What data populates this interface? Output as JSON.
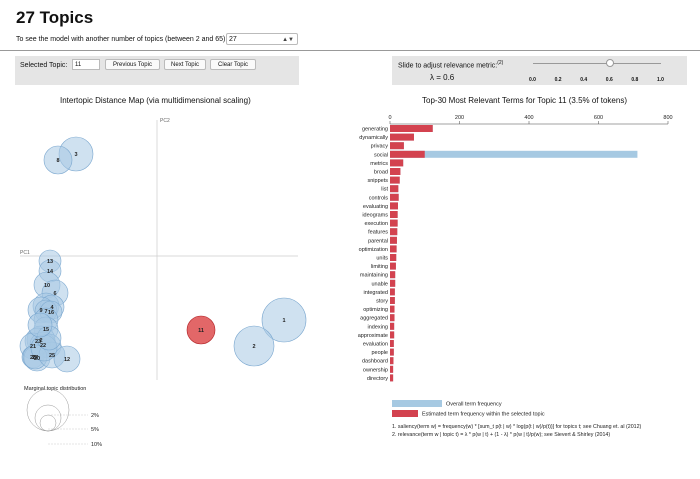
{
  "page": {
    "title": "27 Topics",
    "instruction": "To see the model with another number of topics (between 2 and 65):",
    "topics_value": "27"
  },
  "controls": {
    "selected_topic_label": "Selected Topic:",
    "selected_topic_value": "11",
    "prev_label": "Previous Topic",
    "next_label": "Next Topic",
    "clear_label": "Clear Topic",
    "slider_label": "Slide to adjust relevance metric:",
    "slider_footnote": "(2)",
    "lambda_text": "λ = 0.6",
    "lambda_value": 0.6,
    "slider_ticks": [
      "0.0",
      "0.2",
      "0.4",
      "0.6",
      "0.8",
      "1.0"
    ]
  },
  "map": {
    "title": "Intertopic Distance Map (via multidimensional scaling)",
    "pc1_label": "PC1",
    "pc2_label": "PC2",
    "selected_topic": "11",
    "marginal_title": "Marginal topic distribution",
    "marginal_labels": [
      "2%",
      "5%",
      "10%"
    ],
    "colors": {
      "topic": "#a8c8e3",
      "topic_stroke": "#7aa7cf",
      "selected": "#d62728"
    }
  },
  "chart_data": {
    "type": "bar",
    "title": "Top-30 Most Relevant Terms for Topic 11 (3.5% of tokens)",
    "xlim": [
      0,
      800
    ],
    "xticks": [
      0,
      200,
      400,
      600,
      800
    ],
    "categories": [
      "generating",
      "dynamically",
      "privacy",
      "social",
      "metrics",
      "broad",
      "snippets",
      "list",
      "controls",
      "evaluating",
      "ideograms",
      "execution",
      "features",
      "parental",
      "optimization",
      "units",
      "limiting",
      "maintaining",
      "unable",
      "integrated",
      "story",
      "optimizing",
      "aggregated",
      "indexing",
      "approximate",
      "evaluation",
      "people",
      "dashboard",
      "ownership",
      "directory"
    ],
    "series": [
      {
        "name": "Overall term frequency",
        "color": "#a6c9e2",
        "values": [
          123,
          69,
          40,
          712,
          38,
          30,
          28,
          24,
          25,
          23,
          22,
          22,
          21,
          20,
          19,
          18,
          17,
          15,
          15,
          14,
          14,
          13,
          13,
          12,
          12,
          11,
          11,
          10,
          9,
          9
        ]
      },
      {
        "name": "Estimated term frequency within the selected topic",
        "color": "#d3424f",
        "values": [
          123,
          69,
          40,
          100,
          38,
          30,
          28,
          24,
          25,
          23,
          22,
          22,
          21,
          20,
          19,
          18,
          17,
          15,
          15,
          14,
          14,
          13,
          13,
          12,
          12,
          11,
          11,
          10,
          9,
          9
        ]
      }
    ]
  },
  "legend": {
    "overall": "Overall term frequency",
    "estimated": "Estimated term frequency within the selected topic"
  },
  "notes": {
    "saliency": "1. saliency(term w) = frequency(w) * [sum_t p(t | w) * log(p(t | w)/p(t))] for topics t; see Chuang et. al (2012)",
    "relevance": "2. relevance(term w | topic t) = λ * p(w | t) + (1 - λ) * p(w | t)/p(w); see Sievert & Shirley (2014)"
  }
}
